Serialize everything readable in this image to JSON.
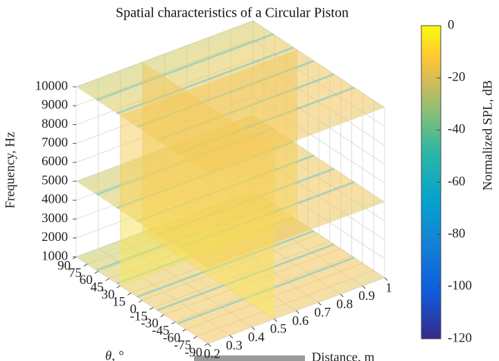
{
  "chart_data": {
    "type": "slice3d",
    "title": "Spatial characteristics of a Circular Piston",
    "xlabel": "Distance, m",
    "ylabel": "θ, °",
    "zlabel": "Frequency, Hz",
    "xlim": [
      0.2,
      1
    ],
    "xticks": [
      0.2,
      0.3,
      0.4,
      0.5,
      0.6,
      0.7,
      0.8,
      0.9,
      1
    ],
    "ylim": [
      -90,
      90
    ],
    "yticks": [
      90,
      75,
      60,
      45,
      30,
      15,
      0,
      -15,
      -30,
      -45,
      -60,
      -75,
      -90
    ],
    "zlim": [
      1000,
      10000
    ],
    "zticks": [
      1000,
      2000,
      3000,
      4000,
      5000,
      6000,
      7000,
      8000,
      9000,
      10000
    ],
    "slices": {
      "x": [
        0.5
      ],
      "y": [
        30
      ],
      "z": [
        1000,
        5000,
        10000
      ]
    },
    "colorbar": {
      "label": "Normalized SPL, dB",
      "clim": [
        -120,
        0
      ],
      "ticks": [
        0,
        -20,
        -40,
        -60,
        -80,
        -100,
        -120
      ]
    },
    "colormap": "parula",
    "grid": true
  }
}
